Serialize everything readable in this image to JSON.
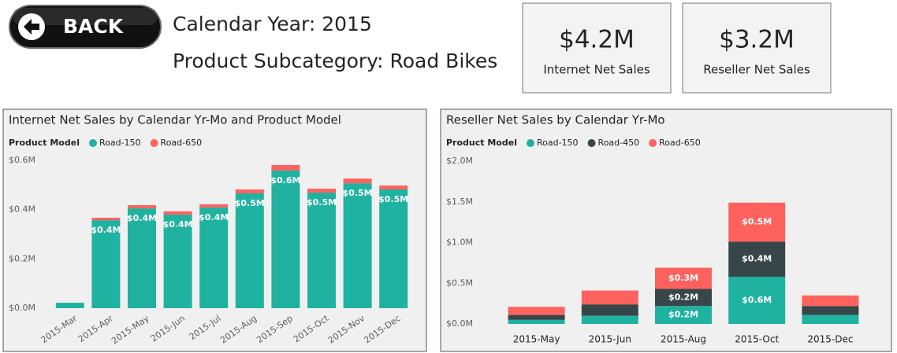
{
  "header": {
    "back": "BACK",
    "line1": "Calendar Year: 2015",
    "line2": "Product Subcategory: Road Bikes"
  },
  "cards": [
    {
      "value": "$4.2M",
      "label": "Internet Net Sales"
    },
    {
      "value": "$3.2M",
      "label": "Reseller Net Sales"
    }
  ],
  "chart_data": [
    {
      "type": "bar",
      "stacked": true,
      "title": "Internet Net Sales by Calendar Yr-Mo and Product Model",
      "legend_title": "Product Model",
      "categories": [
        "2015-Mar",
        "2015-Apr",
        "2015-May",
        "2015-Jun",
        "2015-Jul",
        "2015-Aug",
        "2015-Sep",
        "2015-Oct",
        "2015-Nov",
        "2015-Dec"
      ],
      "series": [
        {
          "name": "Road-150",
          "color": "#20b2a0",
          "values": [
            0.022,
            0.357,
            0.405,
            0.38,
            0.409,
            0.466,
            0.559,
            0.469,
            0.507,
            0.482
          ],
          "value_labels": [
            null,
            "$0.4M",
            "$0.4M",
            "$0.4M",
            "$0.4M",
            "$0.5M",
            "$0.6M",
            "$0.5M",
            "$0.5M",
            "$0.5M"
          ]
        },
        {
          "name": "Road-650",
          "color": "#fd625e",
          "values": [
            0,
            0.01,
            0.013,
            0.013,
            0.013,
            0.016,
            0.022,
            0.016,
            0.019,
            0.016
          ]
        }
      ],
      "ylim": [
        0,
        0.6
      ],
      "yticks": [
        {
          "value": 0,
          "label": "$0.0M"
        },
        {
          "value": 0.2,
          "label": "$0.2M"
        },
        {
          "value": 0.4,
          "label": "$0.4M"
        },
        {
          "value": 0.6,
          "label": "$0.6M"
        }
      ],
      "grid": false
    },
    {
      "type": "bar",
      "stacked": true,
      "title": "Reseller Net Sales by Calendar Yr-Mo",
      "legend_title": "Product Model",
      "categories": [
        "2015-May",
        "2015-Jun",
        "2015-Aug",
        "2015-Oct",
        "2015-Dec"
      ],
      "series": [
        {
          "name": "Road-150",
          "color": "#20b2a0",
          "values": [
            0.05,
            0.1,
            0.22,
            0.58,
            0.11
          ],
          "value_labels": [
            null,
            null,
            "$0.2M",
            "$0.6M",
            null
          ]
        },
        {
          "name": "Road-450",
          "color": "#374649",
          "values": [
            0.06,
            0.14,
            0.21,
            0.43,
            0.11
          ],
          "value_labels": [
            null,
            null,
            "$0.2M",
            "$0.4M",
            null
          ]
        },
        {
          "name": "Road-650",
          "color": "#fd625e",
          "values": [
            0.1,
            0.17,
            0.26,
            0.48,
            0.13
          ],
          "value_labels": [
            null,
            null,
            "$0.3M",
            "$0.5M",
            null
          ]
        }
      ],
      "ylim": [
        0,
        2
      ],
      "yticks": [
        {
          "value": 0,
          "label": "$0.0M"
        },
        {
          "value": 0.5,
          "label": "$0.5M"
        },
        {
          "value": 1,
          "label": "$1.0M"
        },
        {
          "value": 1.5,
          "label": "$1.5M"
        },
        {
          "value": 2,
          "label": "$2.0M"
        }
      ],
      "grid": false
    }
  ]
}
